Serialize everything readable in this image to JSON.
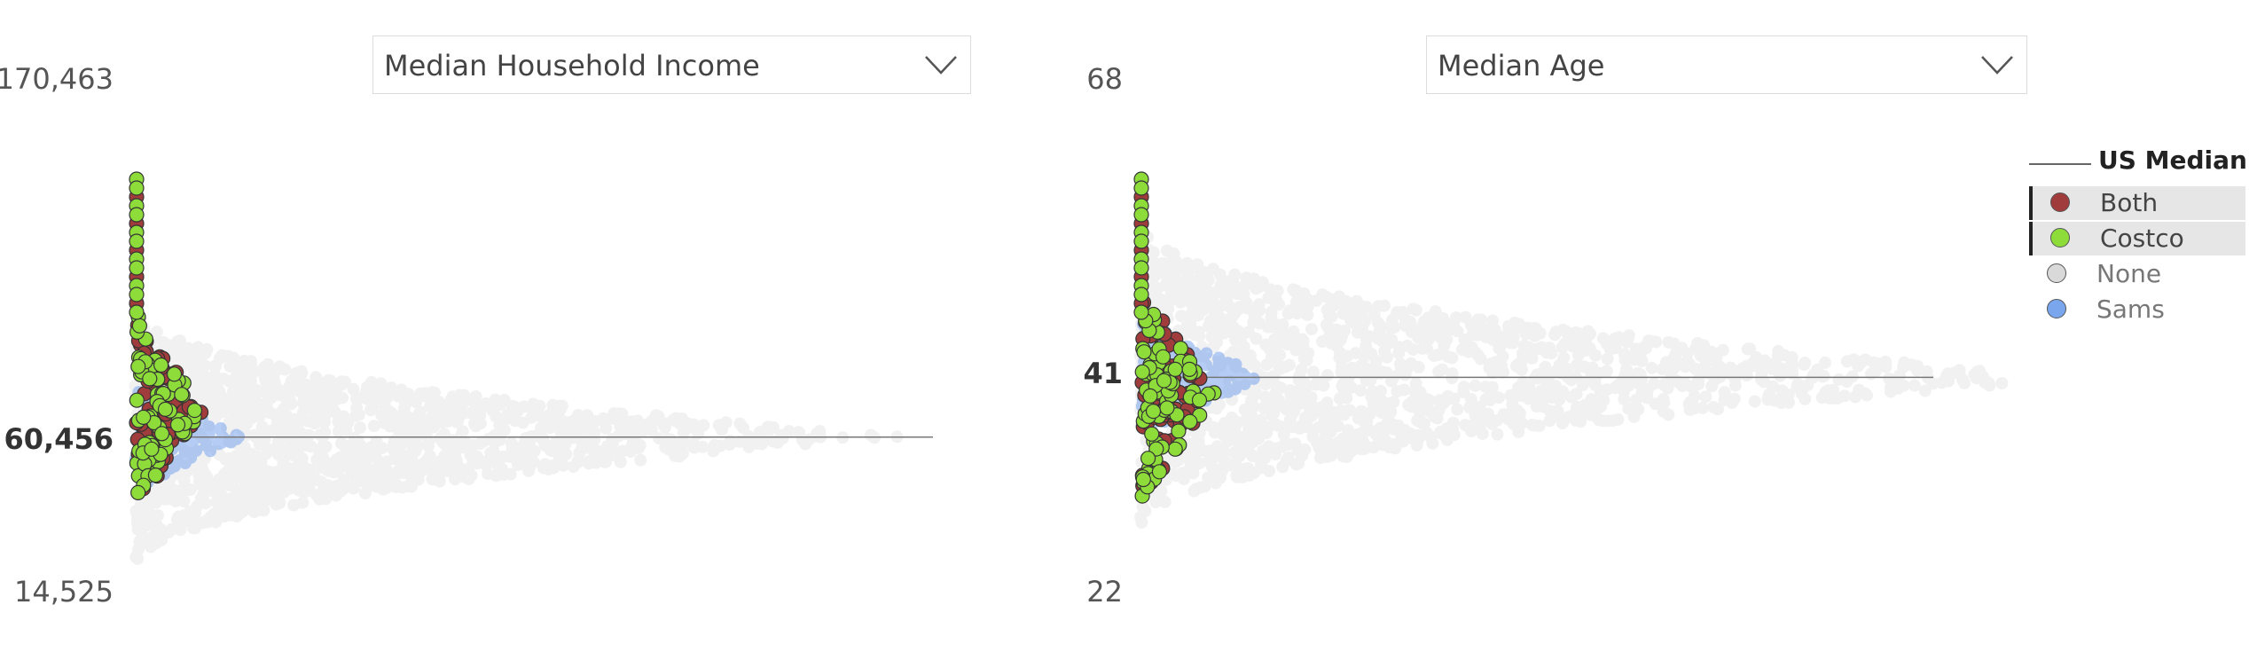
{
  "chart_data": [
    {
      "type": "scatter",
      "dropdown_label": "Median Household Income",
      "y_ticks": [
        "170,463",
        "60,456",
        "14,525"
      ],
      "ylim": [
        14525,
        170463
      ],
      "us_median": 60456,
      "us_median_label": "60,456",
      "series": [
        {
          "name": "Both",
          "color": "#a03c3c"
        },
        {
          "name": "Costco",
          "color": "#8edc3a"
        },
        {
          "name": "None",
          "color": "#d9d9d9"
        },
        {
          "name": "Sams",
          "color": "#7aa6ee"
        }
      ]
    },
    {
      "type": "scatter",
      "dropdown_label": "Median Age",
      "y_ticks": [
        "68",
        "41",
        "22"
      ],
      "ylim": [
        22,
        68
      ],
      "us_median": 41,
      "us_median_label": "41",
      "series": [
        {
          "name": "Both",
          "color": "#a03c3c"
        },
        {
          "name": "Costco",
          "color": "#8edc3a"
        },
        {
          "name": "None",
          "color": "#d9d9d9"
        },
        {
          "name": "Sams",
          "color": "#7aa6ee"
        }
      ]
    }
  ],
  "legend": {
    "title": "US Median",
    "items": [
      {
        "label": "Both",
        "color": "#a03c3c",
        "selected": true
      },
      {
        "label": "Costco",
        "color": "#8edc3a",
        "selected": true
      },
      {
        "label": "None",
        "color": "#d9d9d9",
        "selected": false
      },
      {
        "label": "Sams",
        "color": "#7aa6ee",
        "selected": false
      }
    ]
  },
  "icons": {
    "dropdown": "chevron-down-icon"
  }
}
